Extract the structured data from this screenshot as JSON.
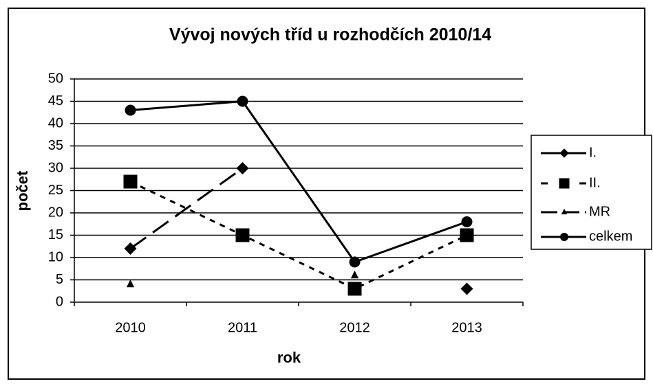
{
  "chart_data": {
    "type": "line",
    "title": "Vývoj nových tříd u rozhodčích 2010/14",
    "x_label": "rok",
    "y_label": "počet",
    "categories": [
      "2010",
      "2011",
      "2012",
      "2013"
    ],
    "series": [
      {
        "name": "I.",
        "color": "#000000",
        "dash": "28 12",
        "marker": "diamond",
        "values": [
          12,
          30,
          null,
          3
        ]
      },
      {
        "name": "II.",
        "color": "#000000",
        "dash": "8 8",
        "marker": "square",
        "values": [
          27,
          15,
          3,
          15
        ]
      },
      {
        "name": "MR",
        "color": "#000000",
        "dash": "24 8 6 8",
        "marker": "triangle",
        "values": [
          4,
          null,
          6,
          null
        ]
      },
      {
        "name": "celkem",
        "color": "#000000",
        "dash": "none",
        "marker": "circle",
        "values": [
          43,
          45,
          9,
          18
        ]
      }
    ],
    "ylim": [
      0,
      50
    ],
    "yticks": [
      0,
      5,
      10,
      15,
      20,
      25,
      30,
      35,
      40,
      45,
      50
    ],
    "grid": true,
    "legend": "right"
  }
}
